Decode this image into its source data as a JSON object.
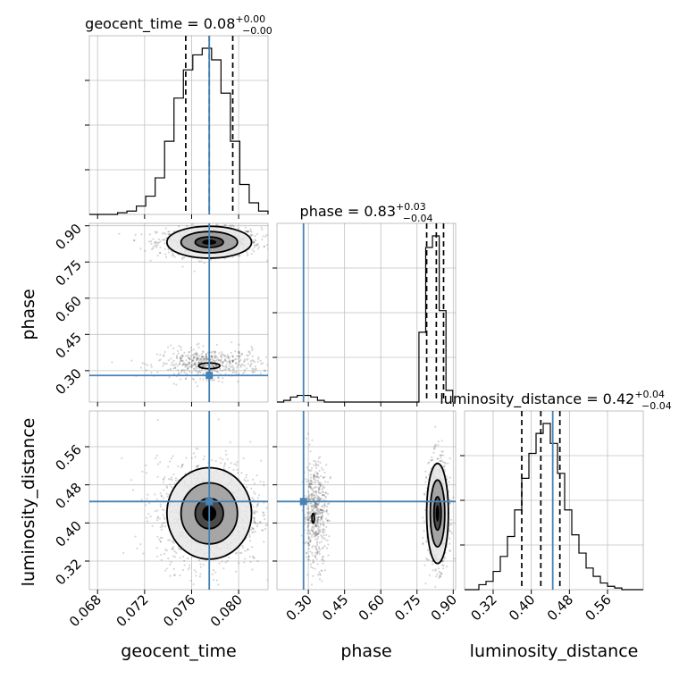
{
  "chart_data": {
    "type": "corner",
    "parameters": [
      "geocent_time",
      "phase",
      "luminosity_distance"
    ],
    "truths": {
      "geocent_time": 0.0775,
      "phase": 0.28,
      "luminosity_distance": 0.445
    },
    "titles": {
      "geocent_time": {
        "prefix": "geocent_time = 0.08",
        "plus": "+0.00",
        "minus": "−0.00"
      },
      "phase": {
        "prefix": "phase = 0.83",
        "plus": "+0.03",
        "minus": "−0.04"
      },
      "luminosity_distance": {
        "prefix": "luminosity_distance = 0.42",
        "plus": "+0.04",
        "minus": "−0.04"
      }
    },
    "axes": {
      "geocent_time": {
        "label": "geocent_time",
        "range": [
          0.0673,
          0.0825
        ],
        "ticks": [
          0.068,
          0.072,
          0.076,
          0.08
        ],
        "tick_labels": [
          "0.068",
          "0.072",
          "0.076",
          "0.080"
        ]
      },
      "phase": {
        "label": "phase",
        "range": [
          0.17,
          0.91
        ],
        "ticks": [
          0.3,
          0.45,
          0.6,
          0.75,
          0.9
        ],
        "tick_labels": [
          "0.30",
          "0.45",
          "0.60",
          "0.75",
          "0.90"
        ]
      },
      "luminosity_distance": {
        "label": "luminosity_distance",
        "range": [
          0.26,
          0.635
        ],
        "ticks": [
          0.32,
          0.4,
          0.48,
          0.56
        ],
        "tick_labels": [
          "0.32",
          "0.40",
          "0.48",
          "0.56"
        ]
      }
    },
    "histograms": {
      "geocent_time": {
        "bins": [
          0.0673,
          0.0681,
          0.0689,
          0.0697,
          0.0705,
          0.0713,
          0.0721,
          0.0729,
          0.0737,
          0.0745,
          0.0753,
          0.0761,
          0.0769,
          0.0777,
          0.0785,
          0.0793,
          0.0801,
          0.0809,
          0.0817,
          0.0825
        ],
        "counts": [
          0,
          0,
          0,
          1,
          2,
          5,
          11,
          22,
          44,
          70,
          87,
          96,
          100,
          93,
          73,
          44,
          18,
          7,
          2
        ],
        "quantiles": [
          0.0755,
          0.0775,
          0.0795
        ]
      },
      "phase": {
        "bins": [
          0.17,
          0.198,
          0.226,
          0.254,
          0.282,
          0.31,
          0.338,
          0.366,
          0.394,
          0.422,
          0.45,
          0.478,
          0.506,
          0.534,
          0.562,
          0.59,
          0.618,
          0.646,
          0.674,
          0.702,
          0.73,
          0.758,
          0.786,
          0.814,
          0.842,
          0.87,
          0.898
        ],
        "counts": [
          0,
          1,
          3,
          4,
          4,
          3,
          1,
          0,
          0,
          0,
          0,
          0,
          0,
          0,
          0,
          0,
          0,
          0,
          0,
          0,
          0,
          42,
          93,
          100,
          55,
          7
        ],
        "quantiles": [
          0.79,
          0.83,
          0.86
        ]
      },
      "luminosity_distance": {
        "bins": [
          0.26,
          0.275,
          0.29,
          0.305,
          0.32,
          0.335,
          0.35,
          0.365,
          0.38,
          0.395,
          0.41,
          0.425,
          0.44,
          0.455,
          0.47,
          0.485,
          0.5,
          0.515,
          0.53,
          0.545,
          0.56,
          0.575,
          0.59,
          0.605,
          0.62,
          0.635
        ],
        "counts": [
          0,
          0,
          3,
          5,
          11,
          20,
          32,
          48,
          67,
          82,
          94,
          100,
          88,
          70,
          48,
          33,
          22,
          13,
          8,
          4,
          2,
          1,
          0,
          0,
          0
        ],
        "quantiles": [
          0.38,
          0.42,
          0.46
        ]
      }
    },
    "contours": {
      "phase_vs_geocent_time": [
        {
          "geocent_time": 0.0775,
          "phase": 0.832,
          "sigma_x": 0.0012,
          "sigma_y": 0.022,
          "levels": [
            1,
            2,
            3
          ]
        },
        {
          "geocent_time": 0.0775,
          "phase": 0.32,
          "sigma_x": 0.0009,
          "sigma_y": 0.012,
          "levels": [
            1
          ]
        }
      ],
      "luminosity_distance_vs_geocent_time": [
        {
          "geocent_time": 0.0775,
          "luminosity_distance": 0.42,
          "sigma_x": 0.0012,
          "sigma_y": 0.032,
          "levels": [
            1,
            2,
            3
          ]
        }
      ],
      "luminosity_distance_vs_phase": [
        {
          "phase": 0.835,
          "luminosity_distance": 0.42,
          "sigma_x": 0.015,
          "sigma_y": 0.035,
          "levels": [
            1,
            2,
            3
          ]
        },
        {
          "phase": 0.32,
          "luminosity_distance": 0.41,
          "sigma_x": 0.005,
          "sigma_y": 0.01,
          "levels": [
            1
          ]
        }
      ]
    },
    "scatter_clusters": {
      "phase_vs_geocent_time": [
        {
          "geocent_time": 0.0775,
          "phase": 0.832,
          "sigma_x": 0.0022,
          "sigma_y": 0.03,
          "n": 900
        },
        {
          "geocent_time": 0.0775,
          "phase": 0.33,
          "sigma_x": 0.0022,
          "sigma_y": 0.03,
          "n": 500
        }
      ],
      "luminosity_distance_vs_geocent_time": [
        {
          "geocent_time": 0.0775,
          "luminosity_distance": 0.42,
          "sigma_x": 0.0022,
          "sigma_y": 0.055,
          "n": 1400
        }
      ],
      "luminosity_distance_vs_phase": [
        {
          "phase": 0.835,
          "luminosity_distance": 0.42,
          "sigma_x": 0.022,
          "sigma_y": 0.055,
          "n": 900
        },
        {
          "phase": 0.33,
          "luminosity_distance": 0.42,
          "sigma_x": 0.025,
          "sigma_y": 0.055,
          "n": 500
        }
      ]
    },
    "grid": true,
    "colors": {
      "truth": "#4682b4",
      "contour": "#000000",
      "scatter": "#000000"
    }
  }
}
